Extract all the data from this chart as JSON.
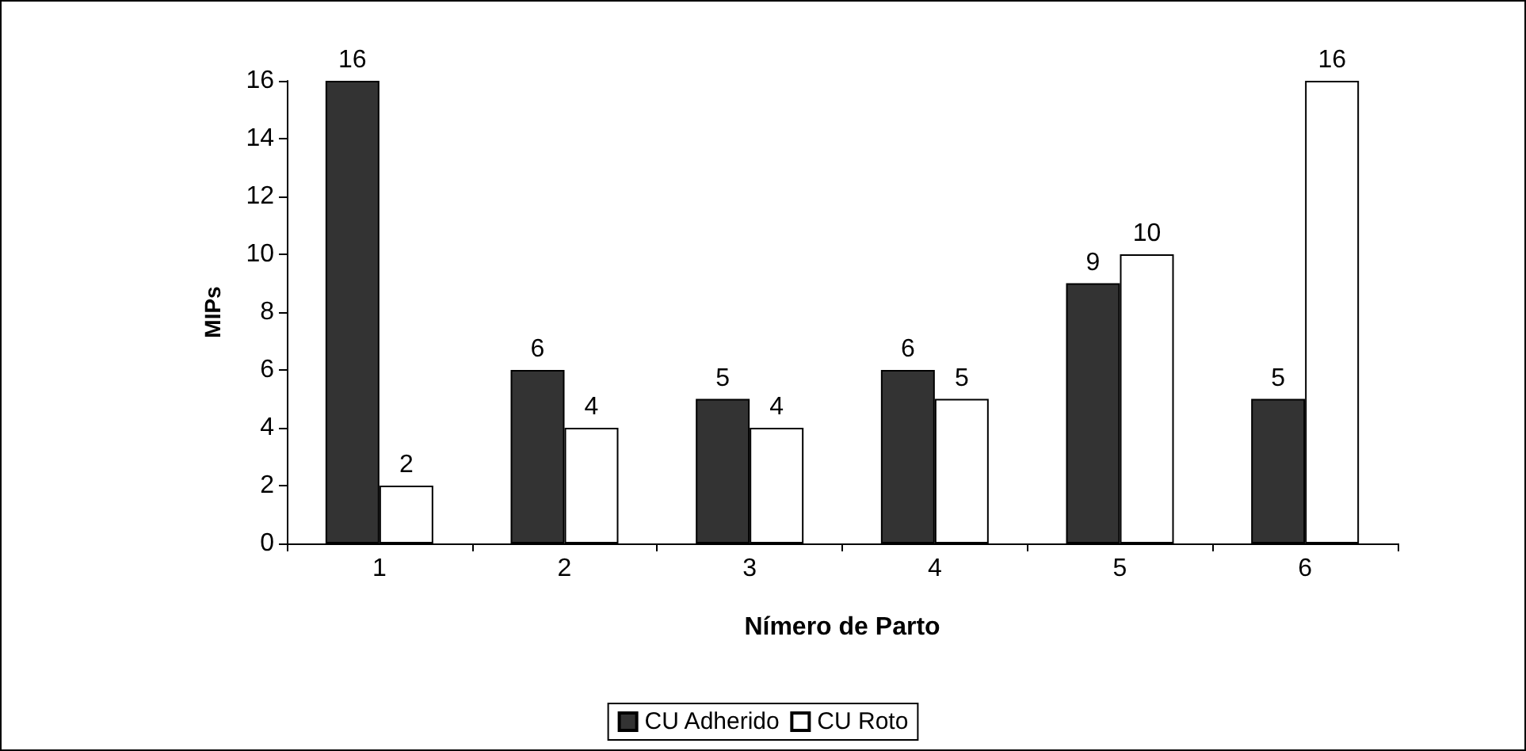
{
  "chart_data": {
    "type": "bar",
    "xlabel": "Nímero de Parto",
    "ylabel": "MIPs",
    "categories": [
      "1",
      "2",
      "3",
      "4",
      "5",
      "6"
    ],
    "series": [
      {
        "name": "CU Adherido",
        "color": "#333333",
        "values": [
          16,
          6,
          5,
          6,
          9,
          5
        ]
      },
      {
        "name": "CU Roto",
        "color": "#ffffff",
        "values": [
          2,
          4,
          4,
          5,
          10,
          16
        ]
      }
    ],
    "ylim": [
      0,
      16
    ],
    "yticks": [
      0,
      2,
      4,
      6,
      8,
      10,
      12,
      14,
      16
    ],
    "grid": false,
    "legend": "bottom",
    "data_labels": true
  }
}
